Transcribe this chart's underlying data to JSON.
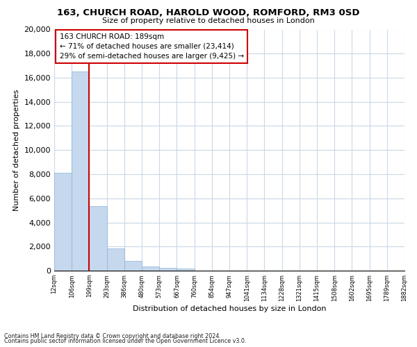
{
  "title": "163, CHURCH ROAD, HAROLD WOOD, ROMFORD, RM3 0SD",
  "subtitle": "Size of property relative to detached houses in London",
  "bar_heights": [
    8100,
    16500,
    5350,
    1850,
    800,
    350,
    250,
    200,
    0,
    0,
    0,
    0,
    0,
    0,
    0,
    0,
    0,
    0,
    0,
    0
  ],
  "bar_color": "#c5d8ed",
  "bar_edge_color": "#8ab4d4",
  "x_labels": [
    "12sqm",
    "106sqm",
    "199sqm",
    "293sqm",
    "386sqm",
    "480sqm",
    "573sqm",
    "667sqm",
    "760sqm",
    "854sqm",
    "947sqm",
    "1041sqm",
    "1134sqm",
    "1228sqm",
    "1321sqm",
    "1415sqm",
    "1508sqm",
    "1602sqm",
    "1695sqm",
    "1789sqm",
    "1882sqm"
  ],
  "ylabel": "Number of detached properties",
  "xlabel": "Distribution of detached houses by size in London",
  "ylim": [
    0,
    20000
  ],
  "yticks": [
    0,
    2000,
    4000,
    6000,
    8000,
    10000,
    12000,
    14000,
    16000,
    18000,
    20000
  ],
  "property_line_color": "#cc0000",
  "annotation_title": "163 CHURCH ROAD: 189sqm",
  "annotation_line1": "← 71% of detached houses are smaller (23,414)",
  "annotation_line2": "29% of semi-detached houses are larger (9,425) →",
  "footer_line1": "Contains HM Land Registry data © Crown copyright and database right 2024.",
  "footer_line2": "Contains public sector information licensed under the Open Government Licence v3.0.",
  "background_color": "#ffffff",
  "grid_color": "#c8d8e8"
}
